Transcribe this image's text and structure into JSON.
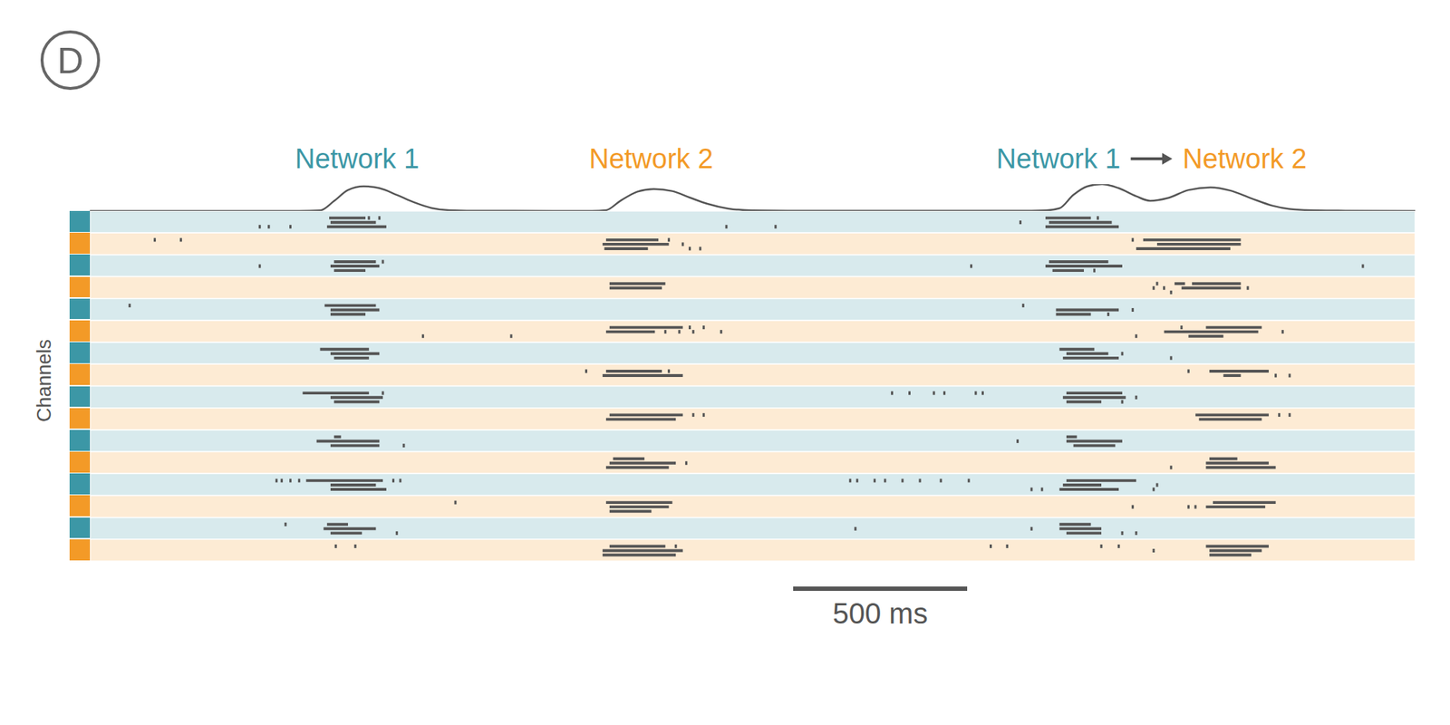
{
  "chart_data": {
    "type": "raster",
    "panel_label": "D",
    "ylabel": "Channels",
    "xlim": [
      0,
      3800
    ],
    "tick_labels": false,
    "scale_bar": {
      "x": 2016,
      "length": 500,
      "label": "500 ms"
    },
    "networks": [
      {
        "name": "Network 1",
        "color": "#3c97a6"
      },
      {
        "name": "Network 2",
        "color": "#f39a27"
      }
    ],
    "annotations": [
      {
        "text": "Network 1",
        "x": 766,
        "network": 0
      },
      {
        "text": "Network 2",
        "x": 1609,
        "network": 1
      },
      {
        "text": "Network 1",
        "x": 2777,
        "network": 0
      },
      {
        "text": "Network 2",
        "x": 3311,
        "network": 1,
        "arrow": true
      }
    ],
    "rate": {
      "ylim": [
        0,
        1
      ],
      "x": [
        0,
        600,
        660,
        700,
        740,
        785,
        830,
        880,
        930,
        980,
        1030,
        1100,
        1400,
        1440,
        1480,
        1520,
        1570,
        1617,
        1670,
        1720,
        1770,
        1830,
        1900,
        2000,
        2700,
        2740,
        2780,
        2820,
        2860,
        2902,
        2950,
        3000,
        3040,
        3090,
        3150,
        3213,
        3270,
        3330,
        3390,
        3450,
        3520,
        3600,
        3800
      ],
      "values": [
        0,
        0,
        0.02,
        0.37,
        0.78,
        0.92,
        0.85,
        0.6,
        0.32,
        0.11,
        0.03,
        0.01,
        0,
        0,
        0.03,
        0.37,
        0.72,
        0.82,
        0.74,
        0.5,
        0.27,
        0.09,
        0.02,
        0.01,
        0.01,
        0.02,
        0.1,
        0.6,
        0.92,
        1.0,
        0.85,
        0.55,
        0.38,
        0.48,
        0.78,
        0.88,
        0.76,
        0.47,
        0.2,
        0.06,
        0.02,
        0.01,
        0
      ]
    },
    "channels": [
      {
        "network": 0,
        "units": [
          {
            "bursts": [
              [
                686,
                790
              ],
              [
                2740,
                2870
              ]
            ],
            "spikes": [
              800,
              830,
              2890
            ]
          },
          {
            "bursts": [
              [
                690,
                820
              ],
              [
                2750,
                2930
              ]
            ],
            "spikes": [
              2668
            ]
          },
          {
            "bursts": [
              [
                680,
                850
              ],
              [
                2740,
                2950
              ]
            ],
            "spikes": [
              487,
              513,
              575,
              1825,
              1966
            ]
          }
        ]
      },
      {
        "network": 1,
        "units": [
          {
            "bursts": [
              [
                1480,
                1630
              ],
              [
                3020,
                3300
              ]
            ],
            "spikes": [
              186,
              261,
              1660,
              2990
            ]
          },
          {
            "bursts": [
              [
                1470,
                1660
              ],
              [
                3060,
                3300
              ]
            ],
            "spikes": [
              1700
            ]
          },
          {
            "bursts": [
              [
                1475,
                1600
              ],
              [
                3000,
                3270
              ]
            ],
            "spikes": [
              1720,
              1750
            ]
          }
        ]
      },
      {
        "network": 0,
        "units": [
          {
            "bursts": [
              [
                700,
                820
              ],
              [
                2750,
                2920
              ]
            ],
            "spikes": [
              840
            ]
          },
          {
            "bursts": [
              [
                690,
                830
              ],
              [
                2740,
                2960
              ]
            ],
            "spikes": [
              487,
              2527,
              3650
            ]
          },
          {
            "bursts": [
              [
                700,
                790
              ],
              [
                2760,
                2850
              ]
            ],
            "spikes": [
              2880
            ]
          }
        ]
      },
      {
        "network": 1,
        "units": [
          {
            "bursts": [
              [
                1490,
                1650
              ],
              [
                3110,
                3140
              ],
              [
                3160,
                3300
              ]
            ],
            "spikes": [
              3060
            ]
          },
          {
            "bursts": [
              [
                1490,
                1640
              ],
              [
                3130,
                3300
              ]
            ],
            "spikes": [
              3050,
              3080,
              3320
            ]
          },
          {
            "bursts": [],
            "spikes": [
              3100
            ]
          }
        ]
      },
      {
        "network": 0,
        "units": [
          {
            "bursts": [
              [
                673,
                820
              ]
            ],
            "spikes": [
              114,
              2676
            ]
          },
          {
            "bursts": [
              [
                690,
                830
              ],
              [
                2770,
                2950
              ]
            ],
            "spikes": [
              2990
            ]
          },
          {
            "bursts": [
              [
                690,
                790
              ],
              [
                2770,
                2870
              ]
            ],
            "spikes": [
              2920
            ]
          }
        ]
      },
      {
        "network": 1,
        "units": [
          {
            "bursts": [
              [
                1490,
                1700
              ],
              [
                3200,
                3360
              ]
            ],
            "spikes": [
              1720,
              1760,
              3130
            ]
          },
          {
            "bursts": [
              [
                1480,
                1620
              ],
              [
                3080,
                3350
              ]
            ],
            "spikes": [
              1650,
              1690,
              1730,
              1810,
              3420
            ]
          },
          {
            "bursts": [
              [
                3150,
                3250
              ]
            ],
            "spikes": [
              955,
              1208,
              3000
            ]
          }
        ]
      },
      {
        "network": 0,
        "units": [
          {
            "bursts": [
              [
                660,
                800
              ],
              [
                2780,
                2880
              ]
            ],
            "spikes": []
          },
          {
            "bursts": [
              [
                690,
                830
              ],
              [
                2800,
                2920
              ]
            ],
            "spikes": [
              2960
            ]
          },
          {
            "bursts": [
              [
                700,
                800
              ],
              [
                2790,
                2950
              ]
            ],
            "spikes": [
              3100
            ]
          }
        ]
      },
      {
        "network": 1,
        "units": [
          {
            "bursts": [
              [
                1480,
                1640
              ],
              [
                3210,
                3380
              ]
            ],
            "spikes": [
              1423,
              1660,
              3150
            ]
          },
          {
            "bursts": [
              [
                1470,
                1700
              ],
              [
                3250,
                3300
              ]
            ],
            "spikes": [
              3400,
              3440
            ]
          }
        ]
      },
      {
        "network": 0,
        "units": [
          {
            "bursts": [
              [
                610,
                800
              ],
              [
                2800,
                2960
              ]
            ],
            "spikes": [
              840,
              2300,
              2350,
              2420,
              2450,
              2540,
              2560
            ]
          },
          {
            "bursts": [
              [
                690,
                840
              ],
              [
                2790,
                2970
              ]
            ],
            "spikes": [
              3000
            ]
          },
          {
            "bursts": [
              [
                700,
                830
              ],
              [
                2800,
                2900
              ]
            ],
            "spikes": [
              2960
            ]
          }
        ]
      },
      {
        "network": 1,
        "units": [
          {
            "bursts": [
              [
                1490,
                1700
              ],
              [
                3170,
                3380
              ]
            ],
            "spikes": [
              1730,
              1760,
              3410,
              3440
            ]
          },
          {
            "bursts": [
              [
                1480,
                1680
              ],
              [
                3180,
                3360
              ]
            ],
            "spikes": []
          }
        ]
      },
      {
        "network": 0,
        "units": [
          {
            "bursts": [
              [
                700,
                720
              ],
              [
                2800,
                2830
              ]
            ],
            "spikes": []
          },
          {
            "bursts": [
              [
                650,
                830
              ],
              [
                2800,
                2960
              ]
            ],
            "spikes": [
              2660
            ]
          },
          {
            "bursts": [
              [
                690,
                830
              ],
              [
                2820,
                2940
              ]
            ],
            "spikes": [
              900
            ]
          }
        ]
      },
      {
        "network": 1,
        "units": [
          {
            "bursts": [
              [
                1500,
                1590
              ],
              [
                3210,
                3290
              ]
            ],
            "spikes": []
          },
          {
            "bursts": [
              [
                1490,
                1680
              ],
              [
                3200,
                3380
              ]
            ],
            "spikes": [
              1710
            ]
          },
          {
            "bursts": [
              [
                1480,
                1660
              ],
              [
                3200,
                3400
              ]
            ],
            "spikes": [
              3100
            ]
          }
        ]
      },
      {
        "network": 0,
        "units": [
          {
            "bursts": [
              [
                620,
                840
              ],
              [
                2800,
                3000
              ]
            ],
            "spikes": [
              535,
              550,
              575,
              600,
              870,
              890,
              2180,
              2200,
              2250,
              2280,
              2330,
              2380,
              2440,
              2520
            ]
          },
          {
            "bursts": [
              [
                690,
                820
              ],
              [
                2790,
                2900
              ]
            ],
            "spikes": [
              3060
            ]
          },
          {
            "bursts": [
              [
                690,
                850
              ],
              [
                2780,
                2950
              ]
            ],
            "spikes": [
              2700,
              2730,
              3050
            ]
          }
        ]
      },
      {
        "network": 1,
        "units": [
          {
            "bursts": [
              [
                1480,
                1670
              ],
              [
                3220,
                3400
              ]
            ],
            "spikes": [
              1048
            ]
          },
          {
            "bursts": [
              [
                1490,
                1660
              ],
              [
                3200,
                3370
              ]
            ],
            "spikes": [
              2990,
              3150,
              3170
            ]
          },
          {
            "bursts": [
              [
                1490,
                1610
              ]
            ],
            "spikes": []
          }
        ]
      },
      {
        "network": 0,
        "units": [
          {
            "bursts": [
              [
                680,
                740
              ],
              [
                2780,
                2870
              ]
            ],
            "spikes": [
              561
            ]
          },
          {
            "bursts": [
              [
                670,
                820
              ],
              [
                2780,
                2900
              ]
            ],
            "spikes": [
              2195,
              2700
            ]
          },
          {
            "bursts": [
              [
                690,
                780
              ],
              [
                2800,
                2900
              ]
            ],
            "spikes": [
              880,
              2960,
              3000
            ]
          }
        ]
      },
      {
        "network": 1,
        "units": [
          {
            "bursts": [
              [
                1490,
                1650
              ],
              [
                3200,
                3380
              ]
            ],
            "spikes": [
              705,
              761,
              1680,
              2583,
              2630,
              2900,
              2950
            ]
          },
          {
            "bursts": [
              [
                1470,
                1700
              ],
              [
                3210,
                3360
              ]
            ],
            "spikes": [
              3050
            ]
          },
          {
            "bursts": [
              [
                1470,
                1680
              ],
              [
                3210,
                3330
              ]
            ],
            "spikes": []
          }
        ]
      }
    ]
  }
}
